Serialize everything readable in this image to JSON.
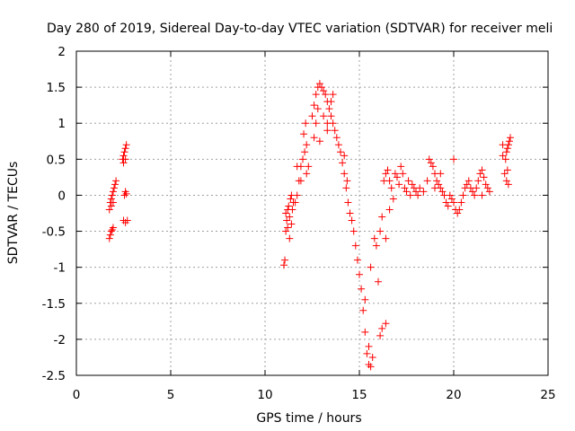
{
  "chart_data": {
    "type": "scatter",
    "title": "Day 280 of 2019, Sidereal Day-to-day VTEC variation (SDTVAR) for receiver meli",
    "xlabel": "GPS time / hours",
    "ylabel": "SDTVAR / TECUs",
    "xlim": [
      0,
      25
    ],
    "ylim": [
      -2.5,
      2
    ],
    "xticks": [
      "0",
      "5",
      "10",
      "15",
      "20",
      "25"
    ],
    "yticks": [
      "2",
      "1.5",
      "1",
      "0.5",
      "0",
      "-0.5",
      "-1",
      "-1.5",
      "-2",
      "-2.5"
    ],
    "grid": true,
    "marker": "plus",
    "color": "#ff0000",
    "series": [
      {
        "name": "SDTVAR",
        "points": [
          [
            1.75,
            -0.6
          ],
          [
            1.8,
            -0.55
          ],
          [
            1.85,
            -0.5
          ],
          [
            1.9,
            -0.48
          ],
          [
            1.95,
            -0.45
          ],
          [
            1.75,
            -0.2
          ],
          [
            1.8,
            -0.1
          ],
          [
            1.85,
            -0.05
          ],
          [
            1.9,
            0.0
          ],
          [
            1.95,
            0.05
          ],
          [
            2.0,
            0.1
          ],
          [
            2.05,
            0.15
          ],
          [
            2.1,
            0.2
          ],
          [
            1.85,
            -0.15
          ],
          [
            1.95,
            -0.1
          ],
          [
            2.45,
            0.5
          ],
          [
            2.5,
            0.55
          ],
          [
            2.55,
            0.6
          ],
          [
            2.6,
            0.65
          ],
          [
            2.65,
            0.7
          ],
          [
            2.5,
            0.45
          ],
          [
            2.6,
            0.5
          ],
          [
            2.55,
            0.0
          ],
          [
            2.6,
            0.05
          ],
          [
            2.65,
            0.02
          ],
          [
            2.5,
            -0.35
          ],
          [
            2.6,
            -0.38
          ],
          [
            2.7,
            -0.35
          ],
          [
            11.0,
            -0.97
          ],
          [
            11.05,
            -0.9
          ],
          [
            11.1,
            -0.5
          ],
          [
            11.1,
            -0.25
          ],
          [
            11.15,
            -0.35
          ],
          [
            11.2,
            -0.2
          ],
          [
            11.25,
            -0.15
          ],
          [
            11.3,
            -0.3
          ],
          [
            11.35,
            -0.05
          ],
          [
            11.4,
            0.0
          ],
          [
            11.45,
            -0.2
          ],
          [
            11.5,
            -0.1
          ],
          [
            11.2,
            -0.45
          ],
          [
            11.3,
            -0.6
          ],
          [
            11.4,
            -0.4
          ],
          [
            11.6,
            -0.1
          ],
          [
            11.7,
            0.0
          ],
          [
            11.8,
            0.2
          ],
          [
            11.9,
            0.4
          ],
          [
            12.0,
            0.5
          ],
          [
            12.1,
            0.6
          ],
          [
            12.2,
            0.7
          ],
          [
            11.7,
            0.4
          ],
          [
            11.9,
            0.2
          ],
          [
            12.05,
            0.85
          ],
          [
            12.15,
            1.0
          ],
          [
            12.2,
            0.3
          ],
          [
            12.3,
            0.4
          ],
          [
            12.5,
            1.1
          ],
          [
            12.6,
            1.25
          ],
          [
            12.7,
            1.4
          ],
          [
            12.8,
            1.5
          ],
          [
            12.9,
            1.55
          ],
          [
            13.0,
            1.5
          ],
          [
            13.1,
            1.45
          ],
          [
            13.2,
            1.4
          ],
          [
            13.3,
            1.3
          ],
          [
            13.4,
            1.2
          ],
          [
            13.5,
            1.1
          ],
          [
            13.6,
            1.0
          ],
          [
            13.7,
            0.9
          ],
          [
            12.6,
            0.8
          ],
          [
            12.7,
            1.0
          ],
          [
            12.8,
            1.2
          ],
          [
            12.9,
            0.75
          ],
          [
            13.1,
            1.1
          ],
          [
            13.3,
            1.0
          ],
          [
            13.5,
            1.3
          ],
          [
            13.6,
            1.4
          ],
          [
            13.3,
            0.9
          ],
          [
            13.8,
            0.8
          ],
          [
            13.9,
            0.7
          ],
          [
            14.0,
            0.6
          ],
          [
            14.1,
            0.45
          ],
          [
            14.2,
            0.3
          ],
          [
            14.3,
            0.1
          ],
          [
            14.4,
            -0.1
          ],
          [
            14.2,
            0.55
          ],
          [
            14.35,
            0.2
          ],
          [
            14.5,
            -0.25
          ],
          [
            14.6,
            -0.35
          ],
          [
            14.7,
            -0.5
          ],
          [
            14.8,
            -0.7
          ],
          [
            14.9,
            -0.9
          ],
          [
            15.0,
            -1.1
          ],
          [
            15.1,
            -1.3
          ],
          [
            15.2,
            -1.6
          ],
          [
            15.3,
            -1.9
          ],
          [
            15.4,
            -2.2
          ],
          [
            15.5,
            -2.35
          ],
          [
            15.6,
            -2.38
          ],
          [
            15.5,
            -2.1
          ],
          [
            15.3,
            -1.45
          ],
          [
            15.6,
            -1.0
          ],
          [
            15.8,
            -0.6
          ],
          [
            15.9,
            -0.7
          ],
          [
            16.0,
            -1.2
          ],
          [
            16.1,
            -1.95
          ],
          [
            16.2,
            -1.85
          ],
          [
            16.4,
            -1.78
          ],
          [
            15.7,
            -2.25
          ],
          [
            16.1,
            -0.5
          ],
          [
            16.2,
            -0.3
          ],
          [
            16.3,
            0.2
          ],
          [
            16.4,
            0.3
          ],
          [
            16.5,
            0.35
          ],
          [
            16.6,
            0.2
          ],
          [
            16.7,
            0.1
          ],
          [
            16.8,
            -0.05
          ],
          [
            16.9,
            0.3
          ],
          [
            17.0,
            0.25
          ],
          [
            17.1,
            0.15
          ],
          [
            17.2,
            0.4
          ],
          [
            17.3,
            0.3
          ],
          [
            16.6,
            -0.2
          ],
          [
            16.4,
            -0.6
          ],
          [
            17.4,
            0.1
          ],
          [
            17.5,
            0.05
          ],
          [
            17.6,
            0.2
          ],
          [
            17.7,
            0.0
          ],
          [
            17.8,
            0.15
          ],
          [
            17.9,
            0.1
          ],
          [
            18.0,
            0.05
          ],
          [
            18.1,
            0.0
          ],
          [
            18.2,
            0.1
          ],
          [
            18.4,
            0.05
          ],
          [
            18.6,
            0.2
          ],
          [
            18.7,
            0.5
          ],
          [
            18.8,
            0.45
          ],
          [
            18.9,
            0.4
          ],
          [
            19.0,
            0.3
          ],
          [
            19.1,
            0.2
          ],
          [
            19.2,
            0.15
          ],
          [
            19.3,
            0.1
          ],
          [
            19.4,
            0.05
          ],
          [
            19.5,
            0.0
          ],
          [
            19.6,
            -0.1
          ],
          [
            19.7,
            -0.15
          ],
          [
            19.0,
            0.1
          ],
          [
            19.3,
            0.3
          ],
          [
            19.8,
            0.0
          ],
          [
            19.9,
            -0.05
          ],
          [
            20.0,
            -0.1
          ],
          [
            20.1,
            -0.2
          ],
          [
            20.2,
            -0.25
          ],
          [
            20.3,
            -0.2
          ],
          [
            20.4,
            -0.1
          ],
          [
            20.5,
            0.0
          ],
          [
            20.6,
            0.1
          ],
          [
            20.7,
            0.15
          ],
          [
            20.8,
            0.2
          ],
          [
            20.0,
            0.5
          ],
          [
            20.9,
            0.1
          ],
          [
            21.0,
            0.05
          ],
          [
            21.1,
            0.0
          ],
          [
            21.2,
            0.1
          ],
          [
            21.3,
            0.2
          ],
          [
            21.4,
            0.3
          ],
          [
            21.5,
            0.35
          ],
          [
            21.6,
            0.25
          ],
          [
            21.7,
            0.15
          ],
          [
            21.8,
            0.1
          ],
          [
            21.9,
            0.05
          ],
          [
            21.5,
            0.0
          ],
          [
            22.7,
            0.3
          ],
          [
            22.75,
            0.5
          ],
          [
            22.8,
            0.6
          ],
          [
            22.85,
            0.65
          ],
          [
            22.9,
            0.7
          ],
          [
            22.95,
            0.75
          ],
          [
            23.0,
            0.8
          ],
          [
            22.8,
            0.2
          ],
          [
            22.9,
            0.15
          ],
          [
            22.85,
            0.35
          ],
          [
            22.6,
            0.7
          ],
          [
            22.6,
            0.55
          ]
        ]
      }
    ]
  }
}
